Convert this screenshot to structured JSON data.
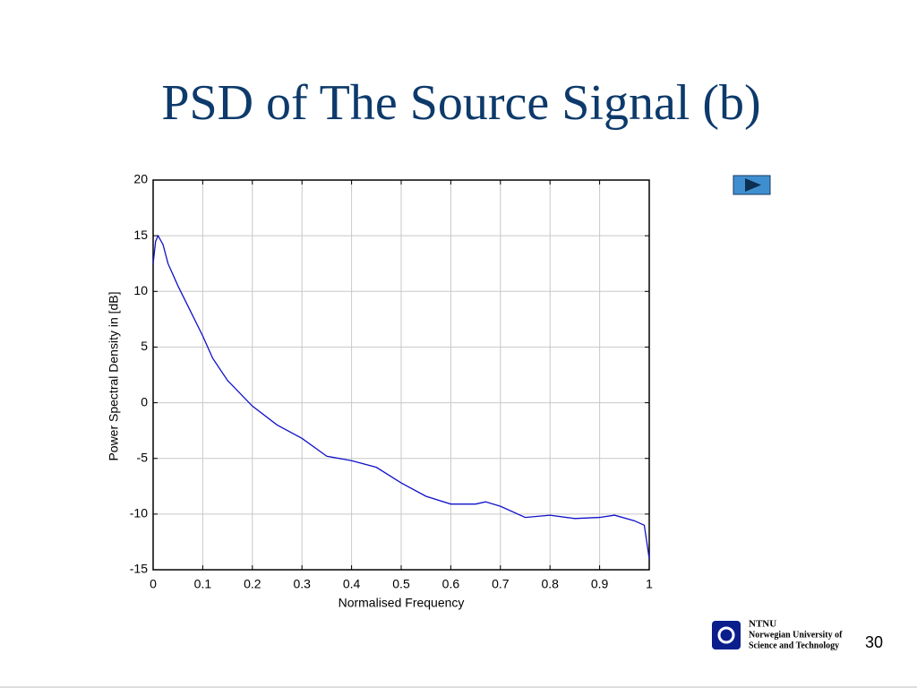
{
  "chart_data": {
    "type": "line",
    "title": "PSD of The Source Signal (b)",
    "x_label": "Normalised Frequency",
    "y_label": "Power Spectral Density in [dB]",
    "xlim": [
      0,
      1
    ],
    "ylim": [
      -15,
      20
    ],
    "xticks": [
      0,
      0.1,
      0.2,
      0.3,
      0.4,
      0.5,
      0.6,
      0.7,
      0.8,
      0.9,
      1
    ],
    "yticks": [
      -15,
      -10,
      -5,
      0,
      5,
      10,
      15,
      20
    ],
    "grid": true,
    "series": [
      {
        "color": "#1010c8",
        "x": [
          0,
          0.005,
          0.01,
          0.02,
          0.03,
          0.05,
          0.07,
          0.1,
          0.12,
          0.15,
          0.2,
          0.25,
          0.3,
          0.35,
          0.4,
          0.45,
          0.5,
          0.55,
          0.6,
          0.65,
          0.67,
          0.7,
          0.75,
          0.8,
          0.85,
          0.9,
          0.93,
          0.97,
          0.99,
          1
        ],
        "values": [
          12.5,
          14.5,
          15,
          14.2,
          12.5,
          10.5,
          8.7,
          6,
          4,
          2,
          -0.3,
          -2,
          -3.2,
          -4.8,
          -5.2,
          -5.8,
          -7.2,
          -8.4,
          -9.1,
          -9.1,
          -8.9,
          -9.3,
          -10.3,
          -10.1,
          -10.4,
          -10.3,
          -10.1,
          -10.6,
          -11,
          -14
        ]
      }
    ]
  },
  "footer": {
    "logo": "NTNU",
    "institution_line1": "Norwegian University of",
    "institution_line2": "Science and Technology",
    "page_number": "30"
  }
}
